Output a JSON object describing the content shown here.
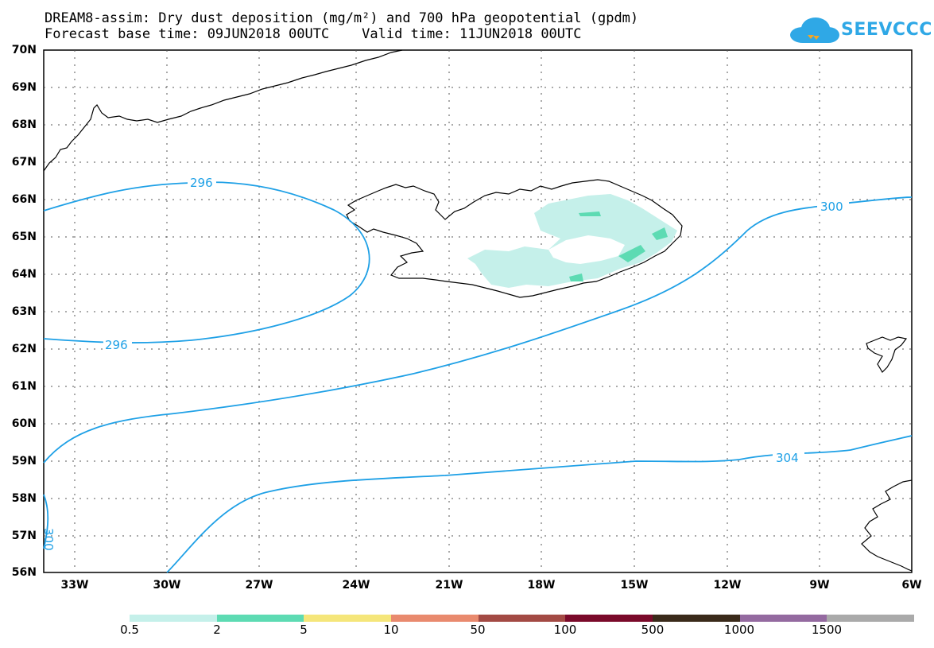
{
  "title_line1": "DREAM8-assim: Dry dust deposition (mg/m²) and 700 hPa geopotential (gpdm)",
  "title_line2": "Forecast base time: 09JUN2018 00UTC    Valid time: 11JUN2018 00UTC",
  "logo_text": "SEEVCCC",
  "lat_labels": [
    "70N",
    "69N",
    "68N",
    "67N",
    "66N",
    "65N",
    "64N",
    "63N",
    "62N",
    "61N",
    "60N",
    "59N",
    "58N",
    "57N",
    "56N"
  ],
  "lon_labels": [
    "33W",
    "30W",
    "27W",
    "24W",
    "21W",
    "18W",
    "15W",
    "12W",
    "9W",
    "6W"
  ],
  "colorbar": {
    "colors": [
      "#c5f0ea",
      "#5ddbb3",
      "#f5e67a",
      "#e98a6e",
      "#a34a44",
      "#7a0a2a",
      "#3a2a1a",
      "#946aa0",
      "#aaaaaa"
    ],
    "labels": [
      "0.5",
      "2",
      "5",
      "10",
      "50",
      "100",
      "500",
      "1000",
      "1500"
    ]
  },
  "contour_labels": {
    "c296_top": "296",
    "c296_bottom": "296",
    "c300": "300",
    "c304": "304",
    "c300_left": "300"
  },
  "colors": {
    "contour": "#1ea0e6",
    "grid": "#555555"
  }
}
